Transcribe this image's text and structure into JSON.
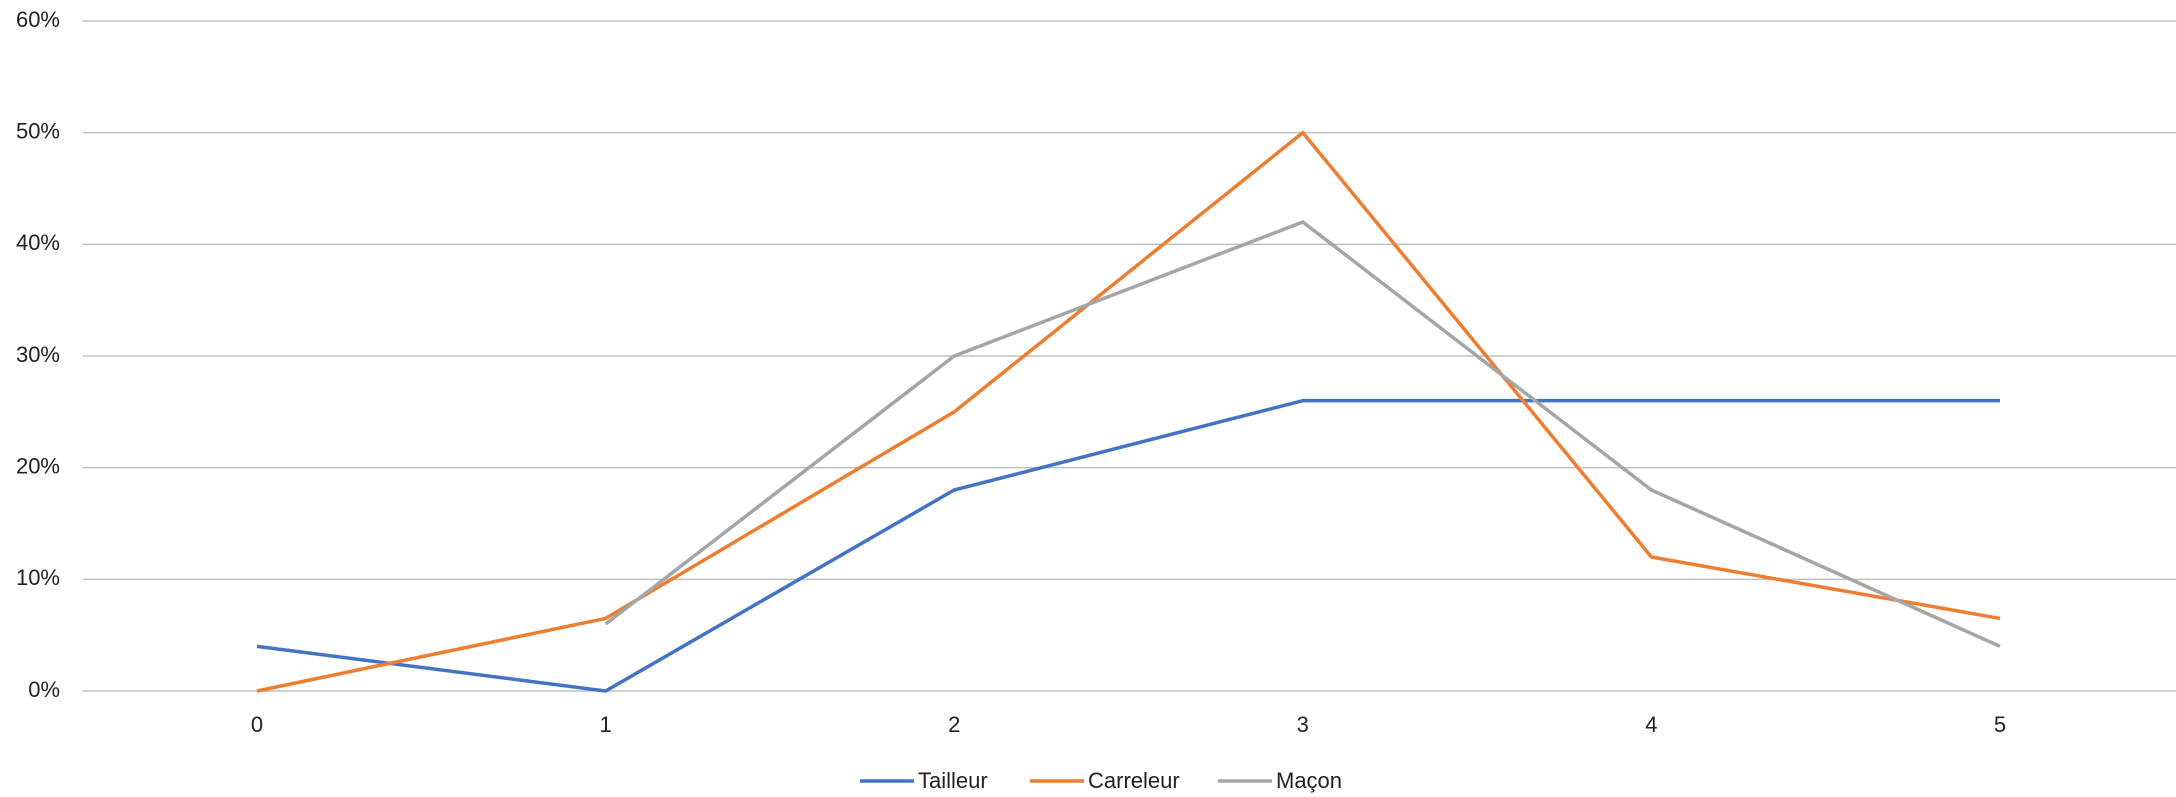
{
  "chart_data": {
    "type": "line",
    "categories": [
      "0",
      "1",
      "2",
      "3",
      "4",
      "5"
    ],
    "series": [
      {
        "name": "Tailleur",
        "color": "#4472c4",
        "values": [
          4,
          0,
          18,
          26,
          26,
          26
        ]
      },
      {
        "name": "Carreleur",
        "color": "#ed7d31",
        "values": [
          0,
          6.5,
          25,
          50,
          12,
          6.5
        ]
      },
      {
        "name": "Maçon",
        "color": "#a5a5a5",
        "values": [
          null,
          6,
          30,
          42,
          18,
          4
        ]
      }
    ],
    "ylim": [
      0,
      60
    ],
    "yticks": [
      {
        "value": 0,
        "label": "0%"
      },
      {
        "value": 10,
        "label": "10%"
      },
      {
        "value": 20,
        "label": "20%"
      },
      {
        "value": 30,
        "label": "30%"
      },
      {
        "value": 40,
        "label": "40%"
      },
      {
        "value": 50,
        "label": "50%"
      },
      {
        "value": 60,
        "label": "60%"
      }
    ],
    "grid": true
  }
}
